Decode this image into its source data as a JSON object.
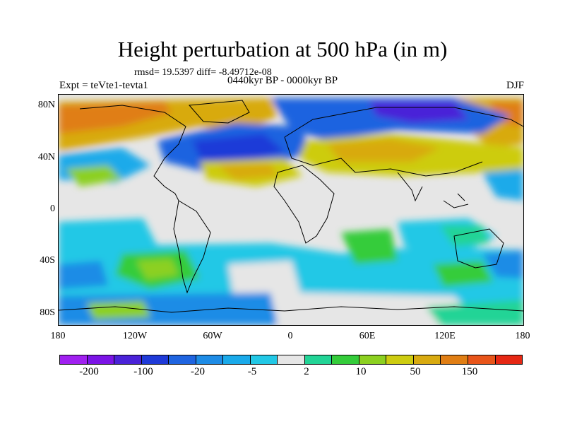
{
  "title": "Height perturbation at 500 hPa (in m)",
  "stats_text": "rmsd= 19.5397 diff= -8.49712e-08",
  "experiment": "Expt = teVte1-tevta1",
  "period": "0440kyr BP - 0000kyr BP",
  "season": "DJF",
  "axes": {
    "y_ticks": [
      "80N",
      "40N",
      "0",
      "40S",
      "80S"
    ],
    "x_ticks": [
      "180",
      "120W",
      "60W",
      "0",
      "60E",
      "120E",
      "180"
    ]
  },
  "colorbar": {
    "colors": [
      "#a020f0",
      "#7b14e6",
      "#4a22d8",
      "#1f3ad8",
      "#1f64e0",
      "#1e8ce6",
      "#1aaaea",
      "#22c8e6",
      "#e6e6e6",
      "#22d496",
      "#34cc3a",
      "#8cd020",
      "#cdcc10",
      "#d8aa10",
      "#e07e14",
      "#e8551a",
      "#e62814"
    ],
    "labels": [
      "-200",
      "-100",
      "-20",
      "-5",
      "2",
      "10",
      "50",
      "150"
    ]
  }
}
